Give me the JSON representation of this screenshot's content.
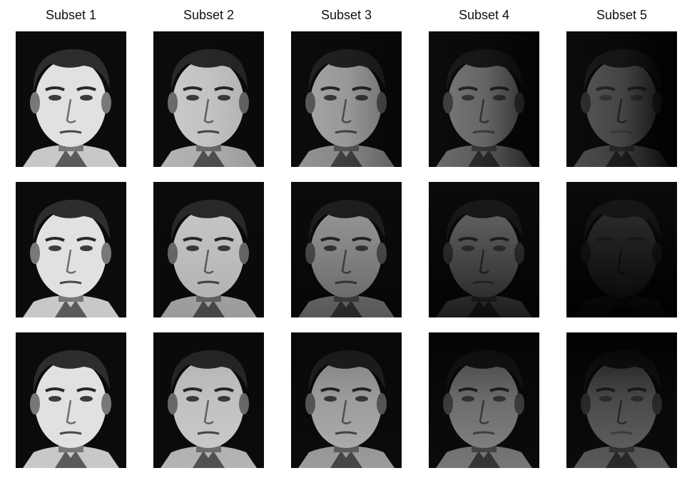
{
  "figure": {
    "columns": [
      "Subset 1",
      "Subset 2",
      "Subset 3",
      "Subset 4",
      "Subset 5"
    ],
    "rows": 3
  },
  "tiles": [
    {
      "subset": "Subset 1",
      "row": 1,
      "lighting": "frontal",
      "brightness": 1.0,
      "side": "none"
    },
    {
      "subset": "Subset 2",
      "row": 1,
      "lighting": "slightly-left",
      "brightness": 0.9,
      "side": "left"
    },
    {
      "subset": "Subset 3",
      "row": 1,
      "lighting": "left-side",
      "brightness": 0.75,
      "side": "left"
    },
    {
      "subset": "Subset 4",
      "row": 1,
      "lighting": "strong-left",
      "brightness": 0.55,
      "side": "left"
    },
    {
      "subset": "Subset 5",
      "row": 1,
      "lighting": "extreme-left",
      "brightness": 0.4,
      "side": "left"
    },
    {
      "subset": "Subset 1",
      "row": 2,
      "lighting": "frontal",
      "brightness": 1.0,
      "side": "none"
    },
    {
      "subset": "Subset 2",
      "row": 2,
      "lighting": "above",
      "brightness": 0.9,
      "side": "top"
    },
    {
      "subset": "Subset 3",
      "row": 2,
      "lighting": "steep-above",
      "brightness": 0.72,
      "side": "top"
    },
    {
      "subset": "Subset 4",
      "row": 2,
      "lighting": "overhead",
      "brightness": 0.5,
      "side": "top"
    },
    {
      "subset": "Subset 5",
      "row": 2,
      "lighting": "extreme-overhead",
      "brightness": 0.25,
      "side": "top"
    },
    {
      "subset": "Subset 1",
      "row": 3,
      "lighting": "frontal",
      "brightness": 1.0,
      "side": "none"
    },
    {
      "subset": "Subset 2",
      "row": 3,
      "lighting": "below",
      "brightness": 0.9,
      "side": "bottom"
    },
    {
      "subset": "Subset 3",
      "row": 3,
      "lighting": "steep-below",
      "brightness": 0.78,
      "side": "bottom"
    },
    {
      "subset": "Subset 4",
      "row": 3,
      "lighting": "strong-below",
      "brightness": 0.6,
      "side": "bottom"
    },
    {
      "subset": "Subset 5",
      "row": 3,
      "lighting": "extreme-below",
      "brightness": 0.45,
      "side": "bottom"
    }
  ],
  "colors": {
    "background": "#ffffff",
    "tile_background": "#0b0b0b",
    "skin_light": "#e6e6e6",
    "hair": "#2a2a2a"
  }
}
